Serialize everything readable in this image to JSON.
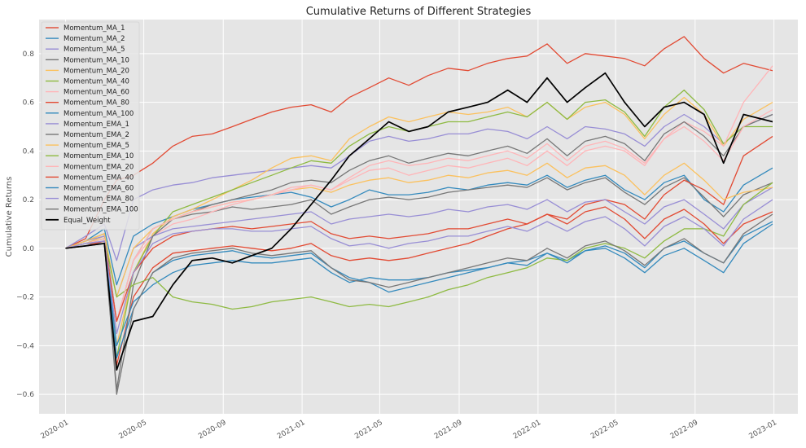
{
  "chart_data": {
    "type": "line",
    "title": "Cumulative Returns of Different Strategies",
    "xlabel": "",
    "ylabel": "Cumulative Returns",
    "xlim": [
      "2019-11-21",
      "2023-02-07"
    ],
    "ylim": [
      -0.68,
      0.94
    ],
    "grid": true,
    "legend_position": "top-left",
    "x_ticks": [
      "2020-01",
      "2020-05",
      "2020-09",
      "2021-01",
      "2021-05",
      "2021-09",
      "2022-01",
      "2022-05",
      "2022-09",
      "2023-01"
    ],
    "y_ticks": [
      -0.6,
      -0.4,
      -0.2,
      0.0,
      0.2,
      0.4,
      0.6,
      0.8
    ],
    "x_tick_labels": [
      "2020-01",
      "2020-05",
      "2020-09",
      "2021-01",
      "2021-05",
      "2021-09",
      "2022-01",
      "2022-05",
      "2022-09",
      "2023-01"
    ],
    "y_tick_labels": [
      "−0.6",
      "−0.4",
      "−0.2",
      "0.0",
      "0.2",
      "0.4",
      "0.6",
      "0.8"
    ],
    "x": [
      "2020-01-01",
      "2020-02-01",
      "2020-03-01",
      "2020-03-20",
      "2020-04-15",
      "2020-05-15",
      "2020-06-15",
      "2020-07-15",
      "2020-08-15",
      "2020-09-15",
      "2020-10-15",
      "2020-11-15",
      "2020-12-15",
      "2021-01-15",
      "2021-02-15",
      "2021-03-15",
      "2021-04-15",
      "2021-05-15",
      "2021-06-15",
      "2021-07-15",
      "2021-08-15",
      "2021-09-15",
      "2021-10-15",
      "2021-11-15",
      "2021-12-15",
      "2022-01-15",
      "2022-02-15",
      "2022-03-15",
      "2022-04-15",
      "2022-05-15",
      "2022-06-15",
      "2022-07-15",
      "2022-08-15",
      "2022-09-15",
      "2022-10-15",
      "2022-11-15",
      "2022-12-30"
    ],
    "series": [
      {
        "name": "Momentum_MA_1",
        "color": "#E24A33",
        "values": [
          0.0,
          0.04,
          0.2,
          0.28,
          0.3,
          0.35,
          0.42,
          0.46,
          0.47,
          0.5,
          0.53,
          0.56,
          0.58,
          0.59,
          0.56,
          0.62,
          0.66,
          0.7,
          0.67,
          0.71,
          0.74,
          0.73,
          0.76,
          0.78,
          0.79,
          0.84,
          0.76,
          0.8,
          0.79,
          0.78,
          0.75,
          0.82,
          0.87,
          0.78,
          0.72,
          0.76,
          0.73
        ]
      },
      {
        "name": "Momentum_MA_2",
        "color": "#348ABD",
        "values": [
          0.0,
          0.03,
          0.08,
          -0.15,
          0.05,
          0.1,
          0.13,
          0.16,
          0.18,
          0.2,
          0.21,
          0.22,
          0.23,
          0.21,
          0.17,
          0.2,
          0.24,
          0.22,
          0.22,
          0.23,
          0.25,
          0.24,
          0.26,
          0.27,
          0.26,
          0.3,
          0.25,
          0.28,
          0.3,
          0.24,
          0.2,
          0.27,
          0.3,
          0.2,
          0.15,
          0.26,
          0.33
        ]
      },
      {
        "name": "Momentum_MA_5",
        "color": "#988ED5",
        "values": [
          0.0,
          0.05,
          0.1,
          -0.05,
          0.2,
          0.24,
          0.26,
          0.27,
          0.29,
          0.3,
          0.31,
          0.32,
          0.33,
          0.34,
          0.33,
          0.38,
          0.44,
          0.46,
          0.44,
          0.45,
          0.47,
          0.47,
          0.49,
          0.48,
          0.45,
          0.5,
          0.45,
          0.5,
          0.49,
          0.47,
          0.42,
          0.5,
          0.55,
          0.5,
          0.43,
          0.5,
          0.55
        ]
      },
      {
        "name": "Momentum_MA_10",
        "color": "#777777",
        "values": [
          0.0,
          0.03,
          0.06,
          -0.3,
          -0.05,
          0.08,
          0.12,
          0.14,
          0.15,
          0.17,
          0.16,
          0.17,
          0.18,
          0.2,
          0.14,
          0.17,
          0.2,
          0.21,
          0.2,
          0.21,
          0.23,
          0.24,
          0.25,
          0.26,
          0.25,
          0.29,
          0.24,
          0.27,
          0.29,
          0.23,
          0.18,
          0.25,
          0.29,
          0.21,
          0.13,
          0.22,
          0.27
        ]
      },
      {
        "name": "Momentum_MA_20",
        "color": "#FBC15E",
        "values": [
          0.0,
          0.02,
          0.05,
          -0.4,
          -0.1,
          0.06,
          0.13,
          0.16,
          0.2,
          0.24,
          0.28,
          0.33,
          0.37,
          0.38,
          0.36,
          0.45,
          0.5,
          0.54,
          0.52,
          0.54,
          0.56,
          0.55,
          0.56,
          0.58,
          0.54,
          0.6,
          0.53,
          0.58,
          0.6,
          0.55,
          0.45,
          0.55,
          0.62,
          0.55,
          0.42,
          0.53,
          0.6
        ]
      },
      {
        "name": "Momentum_MA_40",
        "color": "#8EBA42",
        "values": [
          0.0,
          0.02,
          0.04,
          -0.45,
          -0.1,
          0.05,
          0.15,
          0.18,
          0.21,
          0.24,
          0.27,
          0.3,
          0.33,
          0.36,
          0.35,
          0.42,
          0.47,
          0.5,
          0.48,
          0.5,
          0.52,
          0.52,
          0.54,
          0.56,
          0.54,
          0.6,
          0.53,
          0.6,
          0.61,
          0.56,
          0.46,
          0.58,
          0.65,
          0.57,
          0.43,
          0.5,
          0.5
        ]
      },
      {
        "name": "Momentum_MA_60",
        "color": "#FFB5B8",
        "values": [
          0.0,
          0.02,
          0.03,
          -0.3,
          -0.05,
          0.05,
          0.1,
          0.12,
          0.15,
          0.18,
          0.2,
          0.22,
          0.25,
          0.26,
          0.24,
          0.28,
          0.32,
          0.33,
          0.3,
          0.32,
          0.34,
          0.33,
          0.35,
          0.37,
          0.34,
          0.4,
          0.34,
          0.4,
          0.42,
          0.4,
          0.34,
          0.45,
          0.52,
          0.48,
          0.42,
          0.6,
          0.75
        ]
      },
      {
        "name": "Momentum_MA_80",
        "color": "#E24A33",
        "values": [
          0.0,
          0.01,
          0.02,
          -0.48,
          -0.2,
          -0.08,
          -0.02,
          -0.01,
          0.0,
          0.01,
          0.0,
          -0.01,
          0.0,
          0.02,
          -0.03,
          -0.05,
          -0.04,
          -0.05,
          -0.04,
          -0.02,
          0.0,
          0.02,
          0.05,
          0.08,
          0.1,
          0.14,
          0.12,
          0.18,
          0.2,
          0.18,
          0.12,
          0.22,
          0.28,
          0.24,
          0.18,
          0.38,
          0.46
        ]
      },
      {
        "name": "Momentum_MA_100",
        "color": "#348ABD",
        "values": [
          0.0,
          0.01,
          0.03,
          -0.4,
          -0.22,
          -0.15,
          -0.1,
          -0.07,
          -0.06,
          -0.05,
          -0.06,
          -0.06,
          -0.05,
          -0.04,
          -0.1,
          -0.14,
          -0.12,
          -0.13,
          -0.13,
          -0.12,
          -0.1,
          -0.09,
          -0.08,
          -0.06,
          -0.05,
          -0.02,
          -0.05,
          -0.01,
          0.01,
          -0.02,
          -0.08,
          0.0,
          0.03,
          -0.02,
          -0.06,
          0.05,
          0.11
        ]
      },
      {
        "name": "Momentum_EMA_1",
        "color": "#988ED5",
        "values": [
          0.0,
          0.03,
          0.05,
          -0.2,
          0.0,
          0.05,
          0.08,
          0.09,
          0.1,
          0.11,
          0.12,
          0.13,
          0.14,
          0.15,
          0.1,
          0.12,
          0.13,
          0.14,
          0.13,
          0.14,
          0.16,
          0.15,
          0.17,
          0.18,
          0.16,
          0.2,
          0.15,
          0.19,
          0.2,
          0.15,
          0.1,
          0.17,
          0.2,
          0.14,
          0.08,
          0.18,
          0.25
        ]
      },
      {
        "name": "Momentum_EMA_2",
        "color": "#777777",
        "values": [
          0.0,
          0.02,
          0.02,
          -0.58,
          -0.15,
          0.05,
          0.12,
          0.15,
          0.18,
          0.2,
          0.22,
          0.24,
          0.27,
          0.28,
          0.27,
          0.32,
          0.36,
          0.38,
          0.35,
          0.37,
          0.39,
          0.38,
          0.4,
          0.42,
          0.39,
          0.45,
          0.38,
          0.44,
          0.46,
          0.43,
          0.36,
          0.47,
          0.52,
          0.46,
          0.38,
          0.5,
          0.55
        ]
      },
      {
        "name": "Momentum_EMA_5",
        "color": "#FBC15E",
        "values": [
          0.0,
          0.03,
          0.06,
          -0.2,
          0.0,
          0.08,
          0.12,
          0.15,
          0.17,
          0.19,
          0.2,
          0.22,
          0.24,
          0.25,
          0.23,
          0.26,
          0.28,
          0.29,
          0.27,
          0.28,
          0.3,
          0.29,
          0.31,
          0.32,
          0.3,
          0.35,
          0.29,
          0.33,
          0.34,
          0.3,
          0.22,
          0.3,
          0.35,
          0.28,
          0.2,
          0.23,
          0.25
        ]
      },
      {
        "name": "Momentum_EMA_10",
        "color": "#8EBA42",
        "values": [
          0.0,
          0.02,
          0.04,
          -0.2,
          -0.15,
          -0.12,
          -0.2,
          -0.22,
          -0.23,
          -0.25,
          -0.24,
          -0.22,
          -0.21,
          -0.2,
          -0.22,
          -0.24,
          -0.23,
          -0.24,
          -0.22,
          -0.2,
          -0.17,
          -0.15,
          -0.12,
          -0.1,
          -0.08,
          -0.04,
          -0.05,
          0.0,
          0.02,
          0.0,
          -0.04,
          0.03,
          0.08,
          0.08,
          0.05,
          0.18,
          0.27
        ]
      },
      {
        "name": "Momentum_EMA_20",
        "color": "#FFB5B8",
        "values": [
          0.0,
          0.02,
          0.04,
          -0.3,
          -0.05,
          0.08,
          0.12,
          0.15,
          0.17,
          0.19,
          0.2,
          0.22,
          0.24,
          0.26,
          0.24,
          0.29,
          0.34,
          0.36,
          0.34,
          0.35,
          0.37,
          0.36,
          0.38,
          0.4,
          0.37,
          0.43,
          0.36,
          0.42,
          0.44,
          0.41,
          0.35,
          0.45,
          0.5,
          0.44,
          0.36,
          0.5,
          0.57
        ]
      },
      {
        "name": "Momentum_EMA_40",
        "color": "#E24A33",
        "values": [
          0.0,
          0.01,
          0.03,
          -0.3,
          -0.1,
          0.0,
          0.05,
          0.07,
          0.08,
          0.09,
          0.08,
          0.09,
          0.1,
          0.11,
          0.06,
          0.04,
          0.05,
          0.04,
          0.05,
          0.06,
          0.08,
          0.08,
          0.1,
          0.12,
          0.1,
          0.14,
          0.1,
          0.15,
          0.17,
          0.12,
          0.04,
          0.12,
          0.16,
          0.1,
          0.02,
          0.1,
          0.15
        ]
      },
      {
        "name": "Momentum_EMA_60",
        "color": "#348ABD",
        "values": [
          0.0,
          0.01,
          0.02,
          -0.45,
          -0.25,
          -0.1,
          -0.05,
          -0.03,
          -0.02,
          -0.01,
          -0.03,
          -0.04,
          -0.03,
          -0.02,
          -0.08,
          -0.12,
          -0.14,
          -0.18,
          -0.16,
          -0.14,
          -0.12,
          -0.1,
          -0.08,
          -0.06,
          -0.07,
          -0.02,
          -0.06,
          -0.01,
          0.0,
          -0.04,
          -0.1,
          -0.03,
          0.0,
          -0.05,
          -0.1,
          0.02,
          0.1
        ]
      },
      {
        "name": "Momentum_EMA_80",
        "color": "#988ED5",
        "values": [
          0.0,
          0.02,
          0.03,
          -0.35,
          -0.1,
          0.02,
          0.06,
          0.07,
          0.08,
          0.08,
          0.07,
          0.07,
          0.08,
          0.09,
          0.04,
          0.01,
          0.02,
          0.0,
          0.02,
          0.03,
          0.05,
          0.05,
          0.07,
          0.09,
          0.07,
          0.11,
          0.07,
          0.11,
          0.13,
          0.08,
          0.01,
          0.09,
          0.13,
          0.08,
          0.01,
          0.12,
          0.2
        ]
      },
      {
        "name": "Momentum_EMA_100",
        "color": "#777777",
        "values": [
          0.0,
          0.01,
          0.02,
          -0.6,
          -0.25,
          -0.1,
          -0.04,
          -0.02,
          -0.01,
          0.0,
          -0.02,
          -0.03,
          -0.02,
          -0.01,
          -0.08,
          -0.13,
          -0.14,
          -0.16,
          -0.14,
          -0.12,
          -0.1,
          -0.08,
          -0.06,
          -0.04,
          -0.05,
          0.0,
          -0.04,
          0.01,
          0.03,
          -0.01,
          -0.07,
          0.0,
          0.04,
          -0.02,
          -0.06,
          0.06,
          0.14
        ]
      },
      {
        "name": "Equal_Weight",
        "color": "#000000",
        "values": [
          0.0,
          0.01,
          0.02,
          -0.5,
          -0.3,
          -0.28,
          -0.15,
          -0.05,
          -0.04,
          -0.06,
          -0.03,
          0.0,
          0.08,
          0.18,
          0.28,
          0.38,
          0.45,
          0.52,
          0.48,
          0.5,
          0.56,
          0.58,
          0.6,
          0.65,
          0.6,
          0.7,
          0.6,
          0.66,
          0.72,
          0.6,
          0.5,
          0.58,
          0.6,
          0.55,
          0.35,
          0.55,
          0.52
        ]
      }
    ]
  }
}
